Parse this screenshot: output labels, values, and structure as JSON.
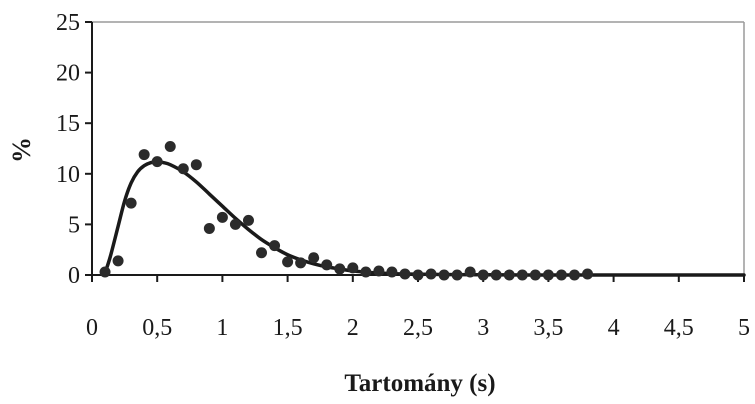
{
  "chart_data": {
    "type": "scatter",
    "title": "",
    "xlabel": "Tartomány (s)",
    "ylabel": "%",
    "xlim": [
      0,
      5
    ],
    "ylim": [
      0,
      25
    ],
    "x_ticks": [
      0,
      0.5,
      1,
      1.5,
      2,
      2.5,
      3,
      3.5,
      4,
      4.5,
      5
    ],
    "x_tick_labels": [
      "0",
      "0,5",
      "1",
      "1,5",
      "2",
      "2,5",
      "3",
      "3,5",
      "4",
      "4,5",
      "5"
    ],
    "y_ticks": [
      0,
      5,
      10,
      15,
      20,
      25
    ],
    "y_tick_labels": [
      "0",
      "5",
      "10",
      "15",
      "20",
      "25"
    ],
    "grid": false,
    "legend": "none",
    "series": [
      {
        "kind": "points",
        "color": "#2b2b2b",
        "points": [
          {
            "x": 0.1,
            "y": 0.3
          },
          {
            "x": 0.2,
            "y": 1.4
          },
          {
            "x": 0.3,
            "y": 7.1
          },
          {
            "x": 0.4,
            "y": 11.9
          },
          {
            "x": 0.5,
            "y": 11.2
          },
          {
            "x": 0.6,
            "y": 12.7
          },
          {
            "x": 0.7,
            "y": 10.5
          },
          {
            "x": 0.8,
            "y": 10.9
          },
          {
            "x": 0.9,
            "y": 4.6
          },
          {
            "x": 1.0,
            "y": 5.7
          },
          {
            "x": 1.1,
            "y": 5.0
          },
          {
            "x": 1.2,
            "y": 5.4
          },
          {
            "x": 1.3,
            "y": 2.2
          },
          {
            "x": 1.4,
            "y": 2.9
          },
          {
            "x": 1.5,
            "y": 1.3
          },
          {
            "x": 1.6,
            "y": 1.2
          },
          {
            "x": 1.7,
            "y": 1.7
          },
          {
            "x": 1.8,
            "y": 1.0
          },
          {
            "x": 1.9,
            "y": 0.6
          },
          {
            "x": 2.0,
            "y": 0.7
          },
          {
            "x": 2.1,
            "y": 0.3
          },
          {
            "x": 2.2,
            "y": 0.4
          },
          {
            "x": 2.3,
            "y": 0.3
          },
          {
            "x": 2.4,
            "y": 0.1
          },
          {
            "x": 2.5,
            "y": 0.0
          },
          {
            "x": 2.6,
            "y": 0.1
          },
          {
            "x": 2.7,
            "y": 0.0
          },
          {
            "x": 2.8,
            "y": 0.0
          },
          {
            "x": 2.9,
            "y": 0.3
          },
          {
            "x": 3.0,
            "y": 0.0
          },
          {
            "x": 3.1,
            "y": 0.0
          },
          {
            "x": 3.2,
            "y": 0.0
          },
          {
            "x": 3.3,
            "y": 0.0
          },
          {
            "x": 3.4,
            "y": 0.0
          },
          {
            "x": 3.5,
            "y": 0.0
          },
          {
            "x": 3.6,
            "y": 0.0
          },
          {
            "x": 3.7,
            "y": 0.0
          },
          {
            "x": 3.8,
            "y": 0.1
          }
        ]
      },
      {
        "kind": "fit-curve",
        "color": "#1a1a1a",
        "points": [
          {
            "x": 0.1,
            "y": 0.2
          },
          {
            "x": 0.14,
            "y": 1.8
          },
          {
            "x": 0.2,
            "y": 4.8
          },
          {
            "x": 0.25,
            "y": 7.3
          },
          {
            "x": 0.3,
            "y": 9.1
          },
          {
            "x": 0.35,
            "y": 10.2
          },
          {
            "x": 0.4,
            "y": 10.8
          },
          {
            "x": 0.45,
            "y": 11.1
          },
          {
            "x": 0.5,
            "y": 11.2
          },
          {
            "x": 0.55,
            "y": 11.1
          },
          {
            "x": 0.6,
            "y": 10.9
          },
          {
            "x": 0.7,
            "y": 10.2
          },
          {
            "x": 0.8,
            "y": 9.2
          },
          {
            "x": 0.9,
            "y": 8.0
          },
          {
            "x": 1.0,
            "y": 6.8
          },
          {
            "x": 1.1,
            "y": 5.6
          },
          {
            "x": 1.2,
            "y": 4.5
          },
          {
            "x": 1.3,
            "y": 3.5
          },
          {
            "x": 1.4,
            "y": 2.7
          },
          {
            "x": 1.5,
            "y": 2.0
          },
          {
            "x": 1.6,
            "y": 1.5
          },
          {
            "x": 1.7,
            "y": 1.1
          },
          {
            "x": 1.8,
            "y": 0.8
          },
          {
            "x": 1.9,
            "y": 0.6
          },
          {
            "x": 2.0,
            "y": 0.4
          },
          {
            "x": 2.2,
            "y": 0.2
          },
          {
            "x": 2.4,
            "y": 0.1
          },
          {
            "x": 2.7,
            "y": 0.05
          },
          {
            "x": 3.0,
            "y": 0.02
          },
          {
            "x": 3.5,
            "y": 0.0
          },
          {
            "x": 4.0,
            "y": 0.0
          },
          {
            "x": 4.5,
            "y": 0.0
          },
          {
            "x": 5.0,
            "y": 0.0
          }
        ]
      }
    ]
  }
}
